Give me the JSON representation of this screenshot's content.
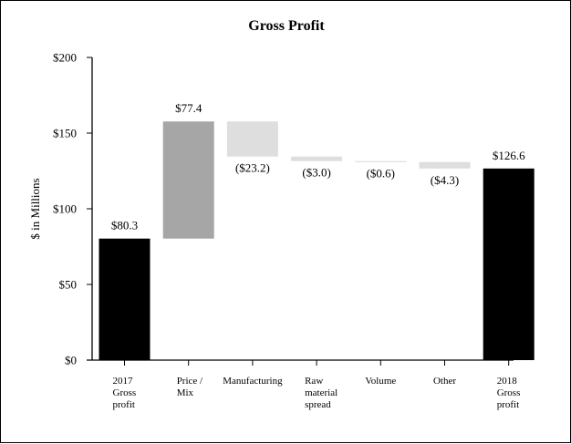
{
  "chart_data": {
    "type": "bar",
    "subtype": "waterfall",
    "title": "Gross Profit",
    "xlabel": "",
    "ylabel": "$ in Millions",
    "ylim": [
      0,
      200
    ],
    "yticks": [
      0,
      50,
      100,
      150,
      200
    ],
    "ytick_labels": [
      "$0",
      "$50",
      "$100",
      "$150",
      "$200"
    ],
    "grid": false,
    "legend": null,
    "categories": [
      "2017 Gross profit",
      "Price / Mix",
      "Manufacturing",
      "Raw material spread",
      "Volume",
      "Other",
      "2018 Gross profit"
    ],
    "category_lines": [
      [
        "2017",
        "Gross",
        "profit"
      ],
      [
        "Price /",
        "Mix"
      ],
      [
        "Manufacturing"
      ],
      [
        "Raw",
        "material",
        "spread"
      ],
      [
        "Volume"
      ],
      [
        "Other"
      ],
      [
        "2018",
        "Gross",
        "profit"
      ]
    ],
    "values": [
      80.3,
      77.4,
      -23.2,
      -3.0,
      -0.6,
      -4.3,
      126.6
    ],
    "value_labels": [
      "$80.3",
      "$77.4",
      "($23.2)",
      "($3.0)",
      "($0.6)",
      "($4.3)",
      "$126.6"
    ],
    "bar_kinds": [
      "total",
      "increase",
      "decrease",
      "decrease",
      "decrease",
      "decrease",
      "total"
    ],
    "colors": {
      "total": "#000000",
      "increase": "#a6a6a6",
      "decrease": "#dedede"
    }
  }
}
